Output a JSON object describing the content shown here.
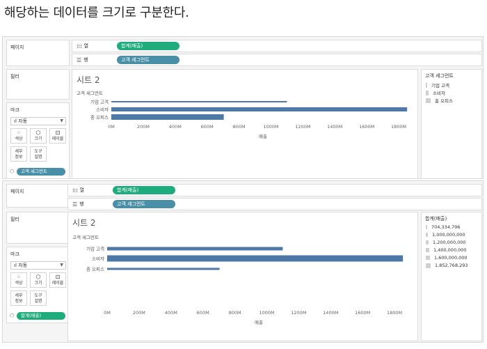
{
  "heading": "해당하는 데이터를 크기로 구분한다.",
  "shelves": {
    "pages": "페이지",
    "columns_label": "열",
    "rows_label": "행",
    "filters": "필터",
    "marks": "마크",
    "columns_pill": "합계(매출)",
    "rows_pill": "고객 세그먼트"
  },
  "marks": {
    "type": "자동",
    "color": "색상",
    "size": "크기",
    "label": "레이블",
    "detail_1": "세부",
    "detail_2": "정보",
    "tooltip_1": "도구",
    "tooltip_2": "설명",
    "shot1_pill": "고객 세그먼트",
    "shot2_pill": "합계(매출)"
  },
  "sheet": {
    "title": "시트 2",
    "row_header": "고객 세그먼트",
    "xlabel": "매출"
  },
  "legend1": {
    "title": "고객 세그먼트",
    "items": [
      "기업 고객",
      "소비자",
      "홈 오피스"
    ]
  },
  "legend2": {
    "title": "합계(매출)",
    "items": [
      "704,334,796",
      "1,000,000,000",
      "1,200,000,000",
      "1,400,000,000",
      "1,600,000,000",
      "1,852,768,293"
    ]
  },
  "chart_data": [
    {
      "type": "bar",
      "orientation": "horizontal",
      "title": "시트 2",
      "categories": [
        "기업 고객",
        "소비자",
        "홈 오피스"
      ],
      "values": [
        1100000000,
        1852768293,
        704334796
      ],
      "thickness": "size-by-segment",
      "xlabel": "매출",
      "ylabel": "고객 세그먼트",
      "xticks": [
        "0M",
        "200M",
        "400M",
        "600M",
        "800M",
        "1000M",
        "1200M",
        "1400M",
        "1600M",
        "1800M"
      ],
      "xlim": [
        0,
        1900000000
      ],
      "color": "#4e79a7",
      "legend": "right"
    },
    {
      "type": "bar",
      "orientation": "horizontal",
      "title": "시트 2",
      "categories": [
        "기업 고객",
        "소비자",
        "홈 오피스"
      ],
      "values": [
        1100000000,
        1852768293,
        704334796
      ],
      "thickness": "size-by-sales",
      "xlabel": "매출",
      "ylabel": "고객 세그먼트",
      "xticks": [
        "0M",
        "200M",
        "400M",
        "600M",
        "800M",
        "1000M",
        "1200M",
        "1400M",
        "1600M",
        "1800M"
      ],
      "xlim": [
        0,
        1900000000
      ],
      "color": "#4e79a7",
      "legend": "right"
    }
  ],
  "colors": {
    "bar": "#4e79a7",
    "pill_green": "#1eac7c",
    "pill_blue": "#4a8fa8"
  }
}
